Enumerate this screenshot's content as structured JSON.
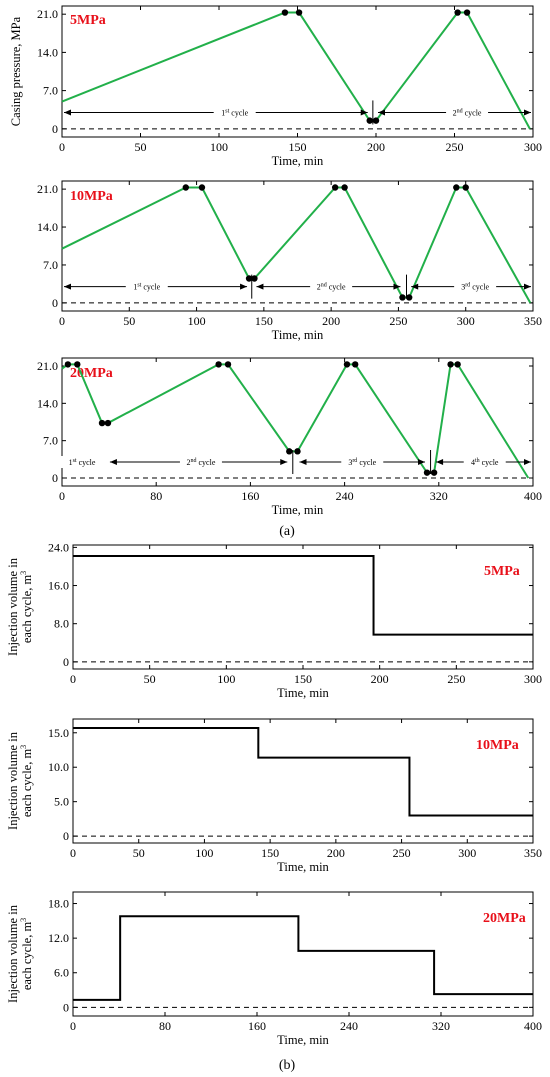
{
  "colors": {
    "line": "#22b04a",
    "axis": "#000000",
    "label_red": "#e8101a",
    "step": "#000000"
  },
  "panel_a_caption": "(a)",
  "panel_b_caption": "(b)",
  "chart_data": [
    {
      "type": "line",
      "label": "5MPa",
      "xlabel": "Time, min",
      "ylabel": "Casing pressure, MPa",
      "xlim": [
        0,
        300
      ],
      "ylim": [
        -1.5,
        22.5
      ],
      "xticks": [
        0,
        50,
        100,
        150,
        200,
        250,
        300
      ],
      "yticks": [
        0,
        7.0,
        14.0,
        21.0
      ],
      "ytick_labels": [
        "0",
        "7.0",
        "14.0",
        "21.0"
      ],
      "series": [
        {
          "x": [
            0,
            142,
            151,
            196,
            200,
            252,
            258,
            298
          ],
          "y": [
            5.0,
            21.3,
            21.3,
            1.5,
            1.5,
            21.3,
            21.3,
            0
          ]
        }
      ],
      "markers": {
        "x": [
          142,
          151,
          196,
          200,
          252,
          258
        ],
        "y": [
          21.3,
          21.3,
          1.5,
          1.5,
          21.3,
          21.3
        ]
      },
      "cycles": [
        {
          "label": "1st cycle",
          "num": "1",
          "sup": "st",
          "from": 0,
          "to": 196,
          "cx": 110
        },
        {
          "label": "2nd cycle",
          "num": "2",
          "sup": "nd",
          "from": 200,
          "to": 300,
          "cx": 258
        }
      ],
      "dividers": [
        198
      ]
    },
    {
      "type": "line",
      "label": "10MPa",
      "xlabel": "Time, min",
      "ylabel": "",
      "xlim": [
        0,
        350
      ],
      "ylim": [
        -1.5,
        22.5
      ],
      "xticks": [
        0,
        50,
        100,
        150,
        200,
        250,
        300,
        350
      ],
      "yticks": [
        0,
        7.0,
        14.0,
        21.0
      ],
      "ytick_labels": [
        "0",
        "7.0",
        "14.0",
        "21.0"
      ],
      "series": [
        {
          "x": [
            0,
            92,
            104,
            139,
            143,
            203,
            210,
            253,
            258,
            293,
            300,
            348
          ],
          "y": [
            10.0,
            21.3,
            21.3,
            4.5,
            4.5,
            21.3,
            21.3,
            1.0,
            1.0,
            21.3,
            21.3,
            0
          ]
        }
      ],
      "markers": {
        "x": [
          92,
          104,
          139,
          143,
          203,
          210,
          253,
          258,
          293,
          300
        ],
        "y": [
          21.3,
          21.3,
          4.5,
          4.5,
          21.3,
          21.3,
          1.0,
          1.0,
          21.3,
          21.3
        ]
      },
      "cycles": [
        {
          "label": "1st cycle",
          "num": "1",
          "sup": "st",
          "from": 0,
          "to": 139,
          "cx": 63
        },
        {
          "label": "2nd cycle",
          "num": "2",
          "sup": "nd",
          "from": 143,
          "to": 253,
          "cx": 200
        },
        {
          "label": "3rd cycle",
          "num": "3",
          "sup": "rd",
          "from": 258,
          "to": 350,
          "cx": 307
        }
      ],
      "dividers": [
        141,
        256
      ]
    },
    {
      "type": "line",
      "label": "20MPa",
      "xlabel": "Time, min",
      "ylabel": "",
      "xlim": [
        0,
        400
      ],
      "ylim": [
        -1.5,
        22.5
      ],
      "xticks": [
        0,
        80,
        160,
        240,
        320,
        400
      ],
      "yticks": [
        0,
        7.0,
        14.0,
        21.0
      ],
      "ytick_labels": [
        "0",
        "7.0",
        "14.0",
        "21.0"
      ],
      "series": [
        {
          "x": [
            0,
            5,
            13,
            34,
            39,
            133,
            141,
            193,
            200,
            242,
            249,
            310,
            316,
            330,
            336,
            396
          ],
          "y": [
            20.5,
            21.3,
            21.3,
            10.3,
            10.3,
            21.3,
            21.3,
            5.0,
            5.0,
            21.3,
            21.3,
            1.0,
            1.0,
            21.3,
            21.3,
            0
          ]
        }
      ],
      "markers": {
        "x": [
          5,
          13,
          34,
          39,
          133,
          141,
          193,
          200,
          242,
          249,
          310,
          316,
          330,
          336
        ],
        "y": [
          21.3,
          21.3,
          10.3,
          10.3,
          21.3,
          21.3,
          5.0,
          5.0,
          21.3,
          21.3,
          1.0,
          1.0,
          21.3,
          21.3
        ]
      },
      "cycles": [
        {
          "label": "1st cycle",
          "num": "1",
          "sup": "st",
          "from": 0,
          "to": 34,
          "cx": 17
        },
        {
          "label": "2nd cycle",
          "num": "2",
          "sup": "nd",
          "from": 39,
          "to": 193,
          "cx": 118
        },
        {
          "label": "3rd cycle",
          "num": "3",
          "sup": "rd",
          "from": 200,
          "to": 310,
          "cx": 255
        },
        {
          "label": "4th cycle",
          "num": "4",
          "sup": "th",
          "from": 316,
          "to": 400,
          "cx": 359
        }
      ],
      "dividers": [
        196,
        313
      ]
    },
    {
      "type": "line",
      "label": "5MPa",
      "xlabel": "Time, min",
      "ylabel": "Injection volume in each cycle, m3",
      "xlim": [
        0,
        300
      ],
      "ylim": [
        -1.5,
        24.5
      ],
      "xticks": [
        0,
        50,
        100,
        150,
        200,
        250,
        300
      ],
      "yticks": [
        0,
        8.0,
        16.0,
        24.0
      ],
      "ytick_labels": [
        "0",
        "8.0",
        "16.0",
        "24.0"
      ],
      "series": [
        {
          "x": [
            0,
            196,
            196,
            300
          ],
          "y": [
            22.2,
            22.2,
            5.7,
            5.7
          ]
        }
      ]
    },
    {
      "type": "line",
      "label": "10MPa",
      "xlabel": "Time, min",
      "ylabel": "Injection volume in each cycle, m3",
      "xlim": [
        0,
        350
      ],
      "ylim": [
        -1.0,
        17.0
      ],
      "xticks": [
        0,
        50,
        100,
        150,
        200,
        250,
        300,
        350
      ],
      "yticks": [
        0,
        5.0,
        10.0,
        15.0
      ],
      "ytick_labels": [
        "0",
        "5.0",
        "10.0",
        "15.0"
      ],
      "series": [
        {
          "x": [
            0,
            141,
            141,
            256,
            256,
            350
          ],
          "y": [
            15.7,
            15.7,
            11.4,
            11.4,
            3.0,
            3.0
          ]
        }
      ]
    },
    {
      "type": "line",
      "label": "20MPa",
      "xlabel": "Time, min",
      "ylabel": "Injection volume in each cycle, m3",
      "xlim": [
        0,
        400
      ],
      "ylim": [
        -1.5,
        20.0
      ],
      "xticks": [
        0,
        80,
        160,
        240,
        320,
        400
      ],
      "yticks": [
        0,
        6.0,
        12.0,
        18.0
      ],
      "ytick_labels": [
        "0",
        "6.0",
        "12.0",
        "18.0"
      ],
      "series": [
        {
          "x": [
            0,
            41,
            41,
            196,
            196,
            314,
            314,
            400
          ],
          "y": [
            1.3,
            1.3,
            15.8,
            15.8,
            9.8,
            9.8,
            2.3,
            2.3
          ]
        }
      ]
    }
  ]
}
